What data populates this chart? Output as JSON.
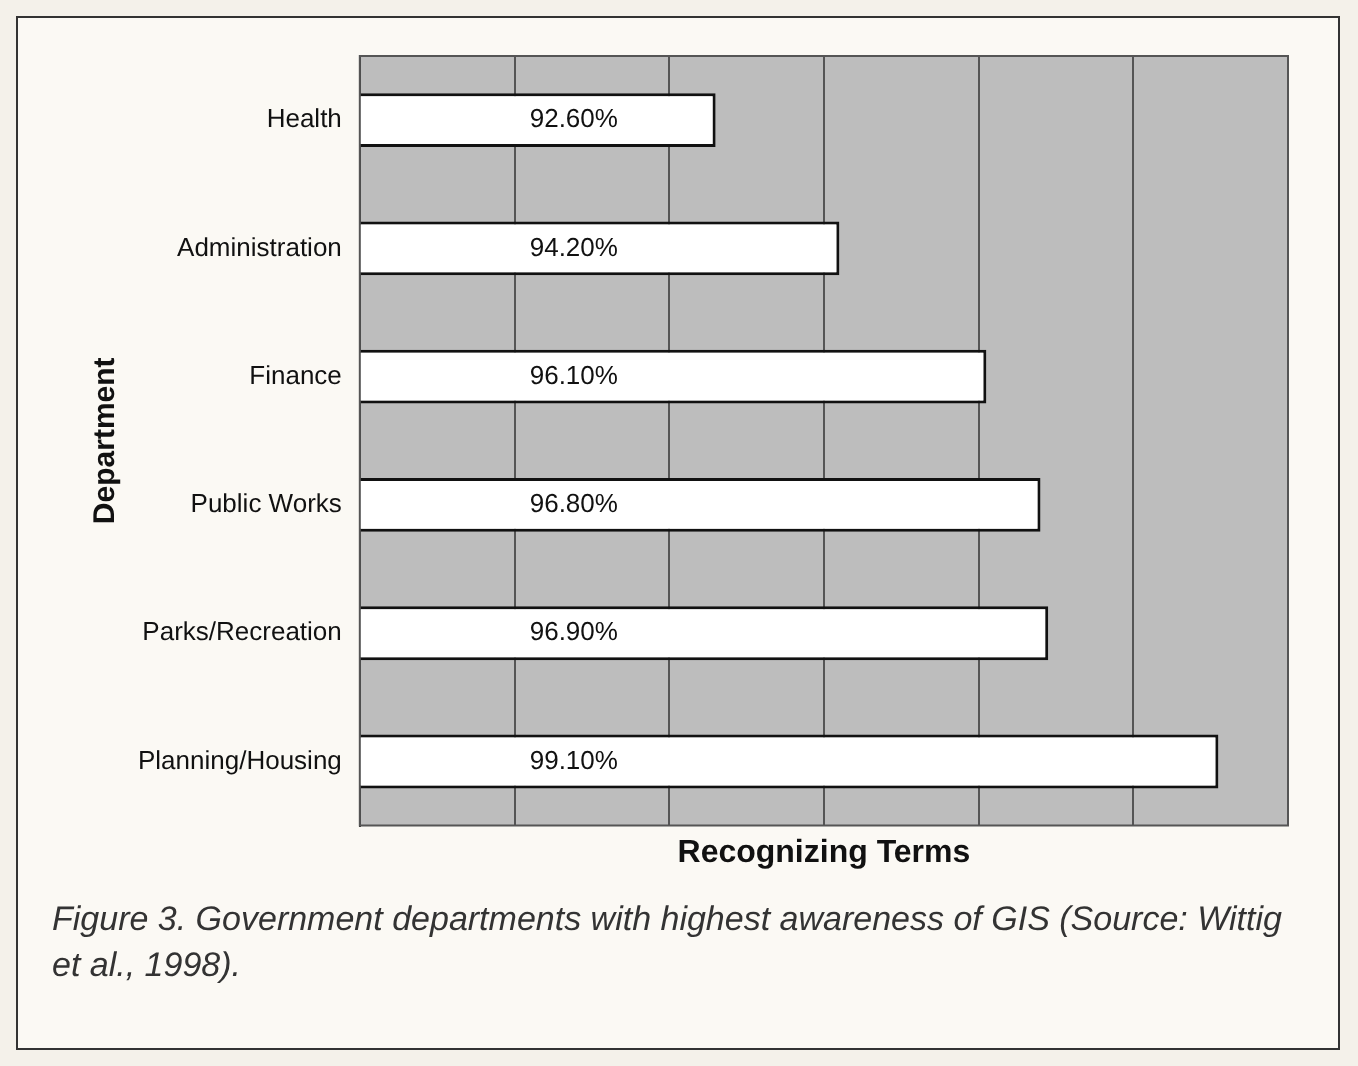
{
  "chart_data": {
    "type": "bar",
    "orientation": "horizontal",
    "xlabel": "Recognizing Terms",
    "ylabel": "Department",
    "categories": [
      "Health",
      "Administration",
      "Finance",
      "Public Works",
      "Parks/Recreation",
      "Planning/Housing"
    ],
    "values": [
      92.6,
      94.2,
      96.1,
      96.8,
      96.9,
      99.1
    ],
    "value_labels": [
      "92.60%",
      "94.20%",
      "96.10%",
      "96.80%",
      "96.90%",
      "99.10%"
    ],
    "color": "#ffffff",
    "xlim": [
      88,
      100
    ],
    "xticks": [
      {
        "value": 88,
        "label": null
      },
      {
        "value": 90,
        "label": null
      },
      {
        "value": 92,
        "label": null
      },
      {
        "value": 94,
        "label": null
      },
      {
        "value": 96,
        "label": null
      },
      {
        "value": 98,
        "label": null
      },
      {
        "value": 100,
        "label": null
      }
    ],
    "grid": "x",
    "tick_labels": "y",
    "annotations": [
      "Figure 3.  Government departments with highest awareness of GIS (Source: Wittig et al., 1998)."
    ]
  }
}
